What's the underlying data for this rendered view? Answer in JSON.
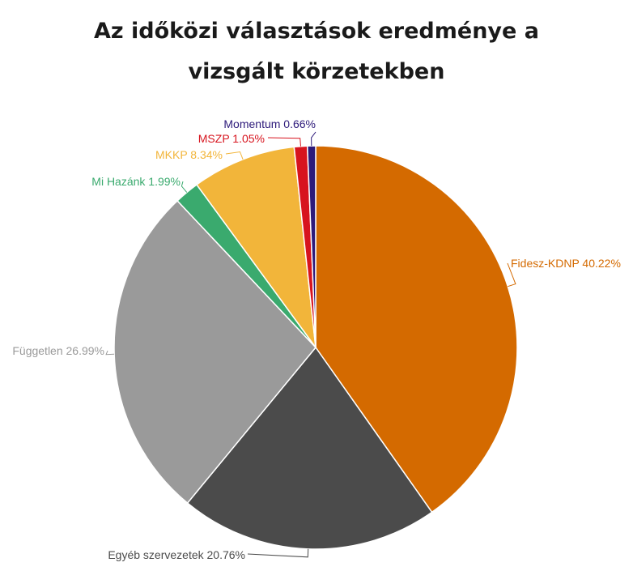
{
  "chart_data": {
    "type": "pie",
    "title_lines": [
      "Az időközi választások eredménye a",
      "vizsgált körzetekben"
    ],
    "slices": [
      {
        "label": "Fidesz-KDNP",
        "value": 40.22,
        "display": "Fidesz-KDNP 40.22%",
        "color": "#d46a00"
      },
      {
        "label": "Egyéb szervezetek",
        "value": 20.76,
        "display": "Egyéb szervezetek 20.76%",
        "color": "#4b4b4b"
      },
      {
        "label": "Független",
        "value": 26.99,
        "display": "Független 26.99%",
        "color": "#9a9a9a"
      },
      {
        "label": "Mi Hazánk",
        "value": 1.99,
        "display": "Mi Hazánk 1.99%",
        "color": "#3aaa6e"
      },
      {
        "label": "MKKP",
        "value": 8.34,
        "display": "MKKP 8.34%",
        "color": "#f2b53a"
      },
      {
        "label": "MSZP",
        "value": 1.05,
        "display": "MSZP 1.05%",
        "color": "#d7141e"
      },
      {
        "label": "Momentum",
        "value": 0.66,
        "display": "Momentum 0.66%",
        "color": "#2d1a7a"
      }
    ]
  }
}
